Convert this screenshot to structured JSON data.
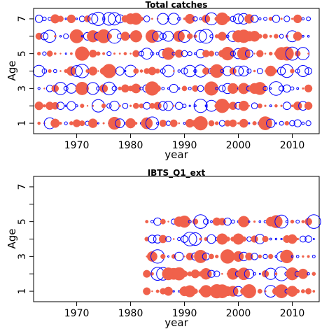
{
  "chart_data": [
    {
      "type": "scatter",
      "subtype": "residual-bubble",
      "title": "Total catches",
      "xlabel": "year",
      "ylabel": "Age",
      "xlim": [
        1962,
        2015
      ],
      "ylim": [
        0.4,
        7.6
      ],
      "xticks": [
        1970,
        1980,
        1990,
        2000,
        2010
      ],
      "yticks": [
        1,
        2,
        3,
        4,
        5,
        6,
        7
      ],
      "ytick_labels": [
        "1",
        "",
        "3",
        "",
        "5",
        "",
        "7"
      ],
      "years": [
        1963,
        2013
      ],
      "ages": [
        1,
        2,
        3,
        4,
        5,
        6,
        7
      ],
      "positive_color": "#F0614B",
      "negative_color": "#0000FF",
      "marker_note": "filled circles = positive, open circles = negative",
      "seed": 11
    },
    {
      "type": "scatter",
      "subtype": "residual-bubble",
      "title": "IBTS_Q1_ext",
      "xlabel": "year",
      "ylabel": "Age",
      "xlim": [
        1962,
        2015
      ],
      "ylim": [
        0.4,
        7.6
      ],
      "xticks": [
        1970,
        1980,
        1990,
        2000,
        2010
      ],
      "yticks": [
        1,
        2,
        3,
        4,
        5,
        6,
        7
      ],
      "ytick_labels": [
        "1",
        "",
        "3",
        "",
        "5",
        "",
        "7"
      ],
      "years": [
        1983,
        2014
      ],
      "ages": [
        1,
        2,
        3,
        4,
        5
      ],
      "positive_color": "#F0614B",
      "negative_color": "#0000FF",
      "marker_note": "filled circles = positive, open circles = negative",
      "seed": 37
    }
  ]
}
